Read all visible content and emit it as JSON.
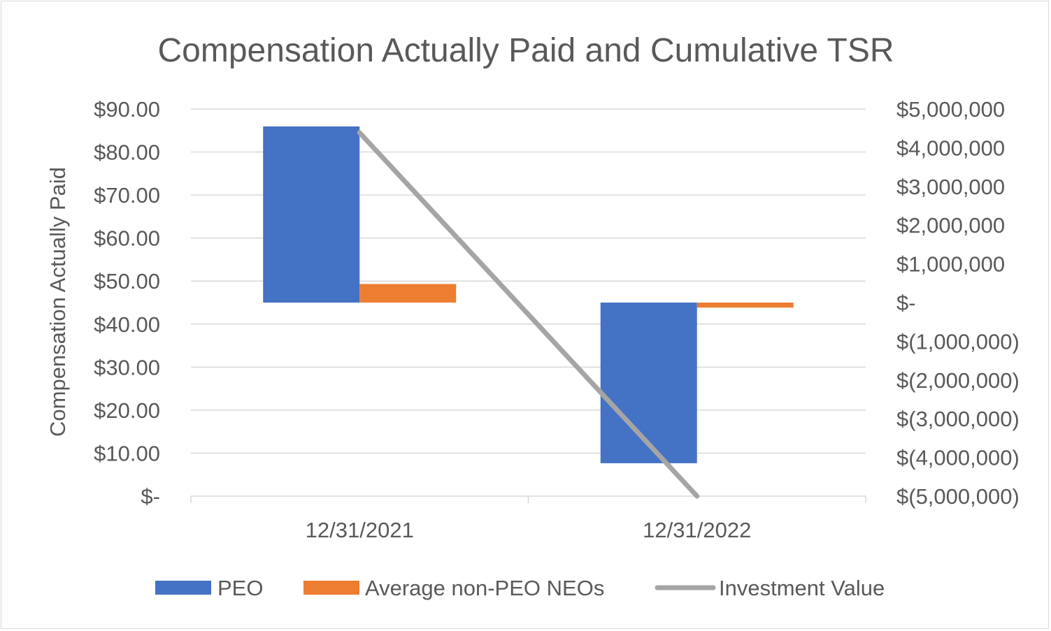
{
  "chart_data": {
    "type": "bar",
    "title": "Compensation Actually Paid and Cumulative TSR",
    "ylabel": "Compensation Actually Paid",
    "categories": [
      "12/31/2021",
      "12/31/2022"
    ],
    "left_axis": {
      "ylim": [
        0,
        90
      ],
      "ticks": [
        0,
        10,
        20,
        30,
        40,
        50,
        60,
        70,
        80,
        90
      ],
      "tick_labels": [
        "$-",
        "$10.00",
        "$20.00",
        "$30.00",
        "$40.00",
        "$50.00",
        "$60.00",
        "$70.00",
        "$80.00",
        "$90.00"
      ]
    },
    "right_axis": {
      "ylim": [
        -5000000,
        5000000
      ],
      "ticks": [
        -5000000,
        -4000000,
        -3000000,
        -2000000,
        -1000000,
        0,
        1000000,
        2000000,
        3000000,
        4000000,
        5000000
      ],
      "tick_labels": [
        "$(5,000,000)",
        "$(4,000,000)",
        "$(3,000,000)",
        "$(2,000,000)",
        "$(1,000,000)",
        "$-",
        "$1,000,000",
        "$2,000,000",
        "$3,000,000",
        "$4,000,000",
        "$5,000,000"
      ]
    },
    "series": [
      {
        "name": "PEO",
        "type": "bar",
        "axis": "right",
        "color": "#4472c4",
        "values": [
          4550000,
          -4150000
        ]
      },
      {
        "name": "Average non-PEO NEOs",
        "type": "bar",
        "axis": "right",
        "color": "#ed7d31",
        "values": [
          480000,
          -130000
        ]
      },
      {
        "name": "Investment Value",
        "type": "line",
        "axis": "left",
        "color": "#a5a5a5",
        "values": [
          84.5,
          0
        ]
      }
    ],
    "grid": true,
    "legend": "bottom"
  }
}
